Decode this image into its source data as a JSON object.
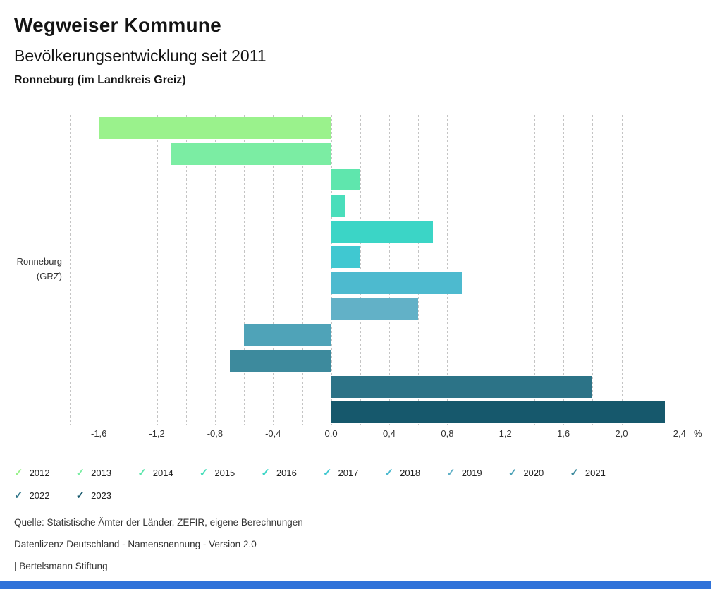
{
  "header": {
    "title": "Wegweiser Kommune",
    "subtitle": "Bevölkerungsentwicklung seit 2011",
    "location": "Ronneburg (im Landkreis Greiz)"
  },
  "chart_data": {
    "type": "bar",
    "orientation": "horizontal",
    "title": "Bevölkerungsentwicklung seit 2011",
    "row_label_lines": [
      "Ronneburg",
      "(GRZ)"
    ],
    "categories": [
      "2012",
      "2013",
      "2014",
      "2015",
      "2016",
      "2017",
      "2018",
      "2019",
      "2020",
      "2021",
      "2022",
      "2023"
    ],
    "values": [
      -1.6,
      -1.1,
      0.2,
      0.1,
      0.7,
      0.2,
      0.9,
      0.6,
      -0.6,
      -0.7,
      1.8,
      2.3
    ],
    "colors": [
      "#9af28c",
      "#7beda3",
      "#5fe6ad",
      "#49debb",
      "#3bd5c6",
      "#40c8d1",
      "#4dbacf",
      "#62b1c7",
      "#4fa3b8",
      "#3d8a9d",
      "#2c7387",
      "#16586c"
    ],
    "unit": "%",
    "xlim": [
      -1.8,
      2.6
    ],
    "gridline_step": 0.2,
    "grid_style": "dashed-vertical",
    "x_tick_values": [
      -1.6,
      -1.2,
      -0.8,
      -0.4,
      0.0,
      0.4,
      0.8,
      1.2,
      1.6,
      2.0,
      2.4
    ],
    "x_tick_labels": [
      "-1,6",
      "-1,2",
      "-0,8",
      "-0,4",
      "0,0",
      "0,4",
      "0,8",
      "1,2",
      "1,6",
      "2,0",
      "2,4"
    ],
    "legend_position": "bottom"
  },
  "footer": {
    "source": "Quelle: Statistische Ämter der Länder, ZEFIR, eigene Berechnungen",
    "license": "Datenlizenz Deutschland - Namensnennung - Version 2.0",
    "brand": "| Bertelsmann Stiftung"
  },
  "bottom_bar": {
    "color": "#2f72d9"
  }
}
